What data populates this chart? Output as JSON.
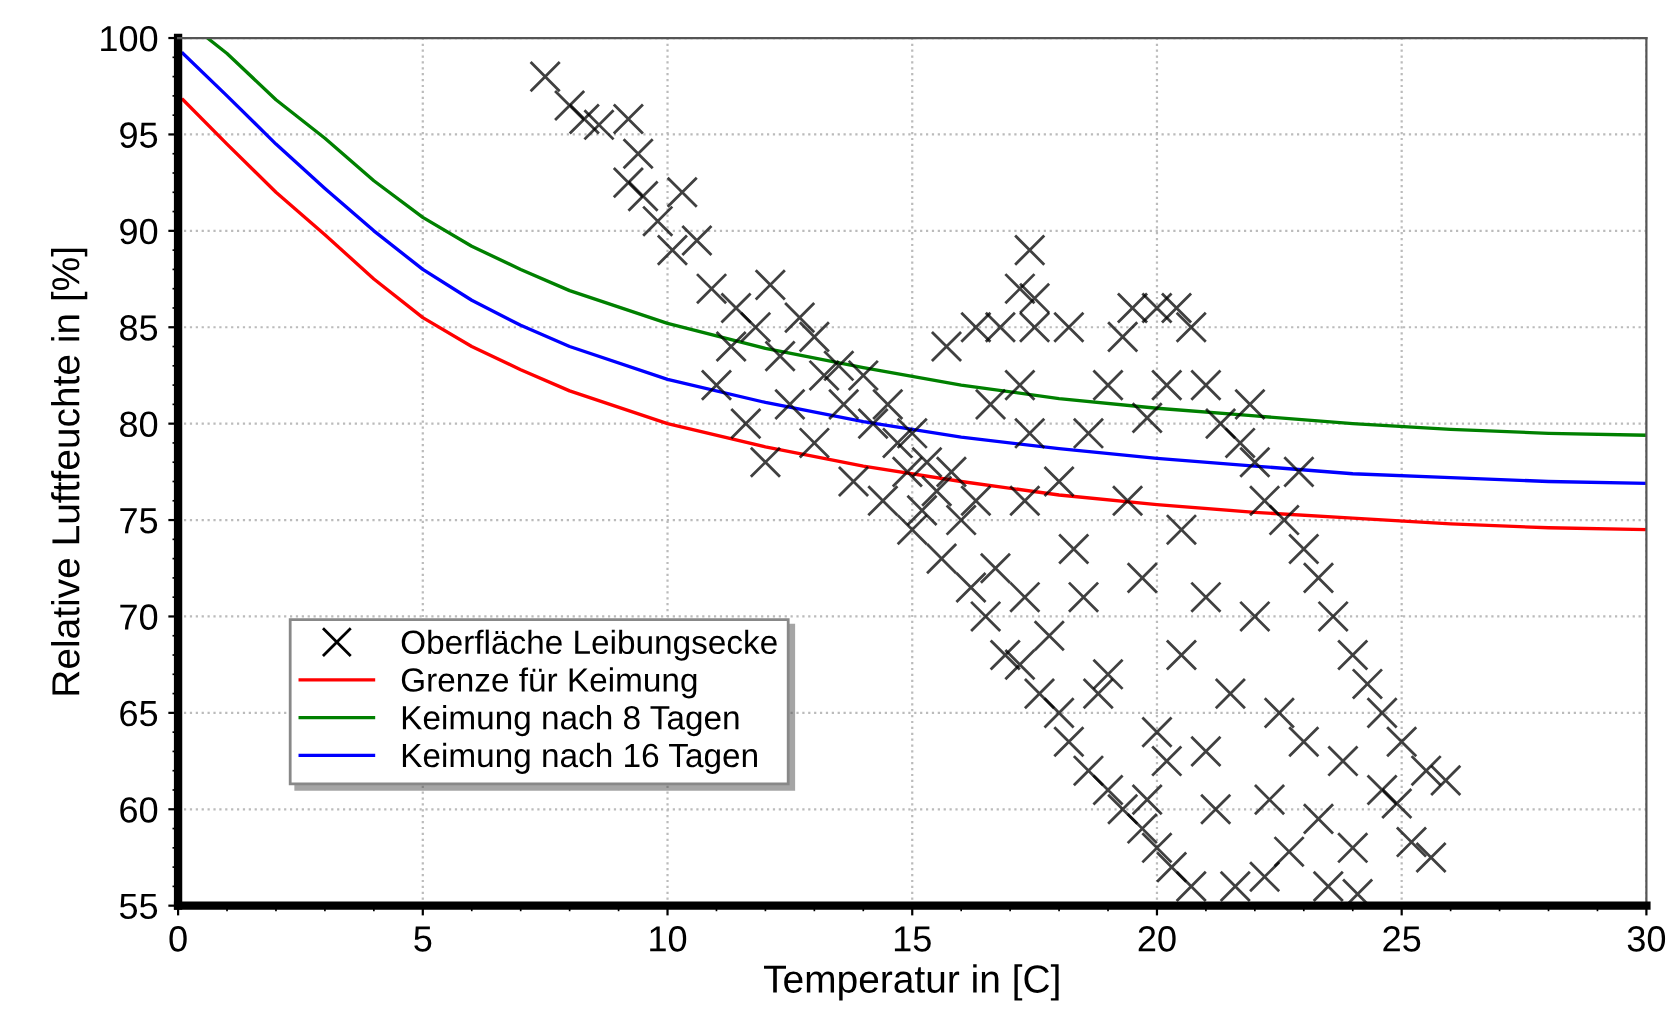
{
  "chart_data": {
    "type": "line",
    "xlabel": "Temperatur in [C]",
    "ylabel": "Relative Luftfeuchte in [%]",
    "xlim": [
      0,
      30
    ],
    "xticks": [
      0,
      5,
      10,
      15,
      20,
      25,
      30
    ],
    "ylim": [
      55,
      100
    ],
    "yticks": [
      55,
      60,
      65,
      70,
      75,
      80,
      85,
      90,
      95,
      100
    ],
    "grid": true,
    "legend": "center left",
    "series": [
      {
        "name": "Oberfläche Leibungsecke",
        "type": "scatter",
        "marker": "cross",
        "color": "#000000",
        "x": [
          7.5,
          8,
          8.3,
          8.6,
          9.2,
          9.4,
          9.2,
          9.5,
          9.8,
          10.3,
          10.1,
          10.6,
          10.9,
          11.4,
          11.3,
          11.8,
          12.1,
          12.3,
          12.7,
          13,
          13.2,
          13.5,
          13.6,
          14,
          14.2,
          14.5,
          14.7,
          15,
          15.3,
          15.5,
          15.8,
          16,
          16.3,
          11,
          11.6,
          12,
          13.8,
          14.4,
          15,
          15.6,
          16.2,
          16.7,
          13,
          12.5,
          14.9,
          15.2,
          16.5,
          16.9,
          17.3,
          17.6,
          18,
          18.2,
          18.6,
          19,
          19.3,
          19.7,
          20,
          20.3,
          20.7,
          19.8,
          18.8,
          17.8,
          17.2,
          21,
          21.3,
          21.7,
          22,
          22.2,
          22.6,
          23,
          23.3,
          23.6,
          24,
          24.3,
          24.6,
          25,
          25.5,
          25.9,
          22.9,
          21.9,
          17.4,
          17.2,
          17.5,
          16.3,
          16.8,
          17.5,
          15.7,
          18.2,
          19.5,
          20,
          20.4,
          19.3,
          20.7,
          17.2,
          19,
          20.2,
          16.6,
          17.4,
          18.6,
          19.8,
          18,
          17.3,
          19.4,
          20.5,
          18.3,
          19.7,
          21,
          22,
          20.5,
          21.5,
          22.5,
          23,
          21,
          20,
          19,
          18.5,
          22.3,
          23.3,
          24,
          24.6,
          25.2,
          25.6,
          22.7,
          21.6,
          22.2,
          23.5,
          24.1,
          21.2,
          20.2,
          23.8,
          24.9
        ],
        "values": [
          98,
          96.5,
          95.8,
          95.5,
          95.8,
          94,
          92.5,
          91.8,
          90.5,
          92,
          89,
          89.5,
          87,
          86,
          84,
          85,
          87.2,
          83.5,
          85.5,
          84.5,
          82.5,
          83,
          81,
          82.5,
          80,
          81,
          79,
          79.5,
          78,
          76.5,
          77.5,
          75,
          76,
          82,
          80,
          78,
          77,
          76,
          74.5,
          73,
          71.5,
          72.5,
          79,
          81,
          77.5,
          75.5,
          70,
          68,
          71,
          66,
          65,
          63.5,
          62,
          61,
          60,
          59,
          58,
          57,
          56,
          60.5,
          66,
          69,
          67.5,
          82,
          80,
          79,
          78,
          76,
          75,
          73.5,
          72,
          70,
          68,
          66.5,
          65,
          63.5,
          62,
          61.5,
          77.5,
          81,
          89,
          87,
          86.5,
          85,
          85,
          85,
          84,
          85,
          86,
          86,
          86,
          84.5,
          85,
          82,
          82,
          82,
          81,
          79.5,
          79.5,
          80.3,
          77,
          76,
          76,
          74.5,
          73.5,
          72,
          71,
          70,
          68,
          66,
          65,
          63.5,
          63,
          64,
          67,
          71,
          60.5,
          59.5,
          58,
          61,
          58.3,
          57.5,
          57.8,
          56,
          56.5,
          56,
          55.6,
          60,
          62.5,
          62.5,
          60.3
        ]
      },
      {
        "name": "Grenze für Keimung",
        "color": "#ff0000",
        "x": [
          0.1,
          1,
          2,
          3,
          4,
          5,
          6,
          7,
          8,
          10,
          12,
          14,
          16,
          18,
          20,
          22,
          24,
          26,
          28,
          30
        ],
        "values": [
          96.8,
          94.5,
          92,
          89.8,
          87.5,
          85.5,
          84,
          82.8,
          81.7,
          80,
          78.8,
          77.8,
          77,
          76.3,
          75.8,
          75.4,
          75.1,
          74.8,
          74.6,
          74.5
        ]
      },
      {
        "name": "Keimung nach 8 Tagen",
        "color": "#008000",
        "x": [
          0.6,
          1,
          2,
          3,
          4,
          5,
          6,
          7,
          8,
          10,
          12,
          14,
          16,
          18,
          20,
          22,
          24,
          26,
          28,
          30
        ],
        "values": [
          100,
          99.2,
          96.8,
          94.8,
          92.6,
          90.7,
          89.2,
          88,
          86.9,
          85.2,
          83.9,
          82.9,
          82,
          81.3,
          80.8,
          80.4,
          80,
          79.7,
          79.5,
          79.4
        ]
      },
      {
        "name": "Keimung nach 16 Tagen",
        "color": "#0000ff",
        "x": [
          0.1,
          1,
          2,
          3,
          4,
          5,
          6,
          7,
          8,
          10,
          12,
          14,
          16,
          18,
          20,
          22,
          24,
          26,
          28,
          30
        ],
        "values": [
          99.2,
          97,
          94.5,
          92.2,
          90,
          88,
          86.4,
          85.1,
          84,
          82.3,
          81.1,
          80.1,
          79.3,
          78.7,
          78.2,
          77.8,
          77.4,
          77.2,
          77,
          76.9
        ]
      }
    ]
  }
}
